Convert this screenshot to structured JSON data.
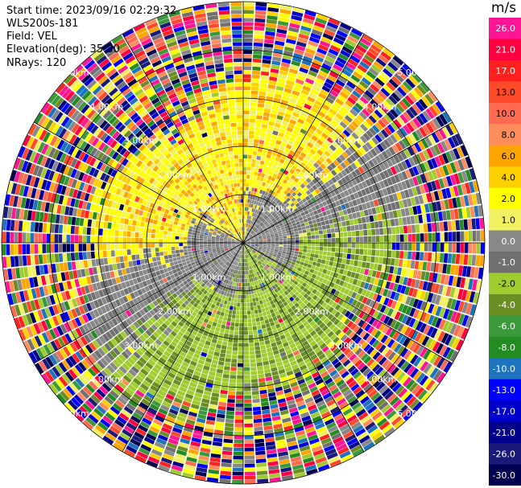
{
  "header": {
    "start_time": "Start time: 2023/09/16 02:29:32",
    "instrument": "WLS200s-181",
    "field": "Field: VEL",
    "elevation": "Elevation(deg): 35.30",
    "nrays": "NRays: 120"
  },
  "chart_data": {
    "type": "heatmap",
    "projection": "polar-ppi",
    "nrays": 120,
    "range_rings_km": [
      1.0,
      2.0,
      3.0,
      4.0,
      5.0
    ],
    "ring_labels": [
      "1.00km",
      "2.00km",
      "3.00km",
      "4.00km",
      "5.00km"
    ],
    "max_range_km": 5.0,
    "colorbar": {
      "unit": "m/s",
      "tick_labels": [
        "26.0",
        "21.0",
        "17.0",
        "13.0",
        "10.0",
        "8.0",
        "6.0",
        "4.0",
        "2.0",
        "1.0",
        "0.0",
        "-1.0",
        "-2.0",
        "-4.0",
        "-6.0",
        "-8.0",
        "-10.0",
        "-13.0",
        "-17.0",
        "-21.0",
        "-26.0",
        "-30.0"
      ],
      "colors": [
        "#ff1493",
        "#ff0040",
        "#ff2020",
        "#ff4a2a",
        "#ff6a50",
        "#ff8c5a",
        "#ffa500",
        "#ffd000",
        "#ffff00",
        "#f0f060",
        "#888888",
        "#707070",
        "#a0cc30",
        "#6b8e23",
        "#3a9a3a",
        "#228b22",
        "#1e73be",
        "#0000ff",
        "#0000cd",
        "#00008b",
        "#1a1a7a",
        "#000050"
      ]
    }
  }
}
